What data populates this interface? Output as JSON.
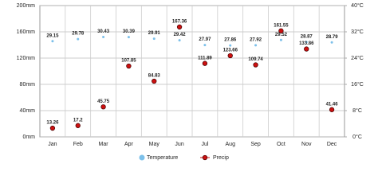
{
  "chart_data": {
    "type": "line",
    "categories": [
      "Jan",
      "Feb",
      "Mar",
      "Apr",
      "May",
      "Jun",
      "Jul",
      "Aug",
      "Sep",
      "Oct",
      "Nov",
      "Dec"
    ],
    "series": [
      {
        "name": "Temperature",
        "color": "#7cc0ea",
        "axis": "y2",
        "values": [
          29.15,
          29.78,
          30.43,
          30.39,
          29.91,
          29.42,
          27.97,
          27.86,
          27.92,
          29.52,
          28.87,
          28.79
        ]
      },
      {
        "name": "Precip",
        "color": "#cc1010",
        "values": [
          13.26,
          17.2,
          45.75,
          107.85,
          84.83,
          167.36,
          111.89,
          123.66,
          109.74,
          161.55,
          133.86,
          41.46
        ]
      }
    ],
    "ylim": [
      0,
      200
    ],
    "yticks": [
      {
        "value": 0,
        "label": "0mm"
      },
      {
        "value": 40,
        "label": "40mm"
      },
      {
        "value": 80,
        "label": "80mm"
      },
      {
        "value": 120,
        "label": "120mm"
      },
      {
        "value": 160,
        "label": "160mm"
      },
      {
        "value": 200,
        "label": "200mm"
      }
    ],
    "y2lim": [
      0,
      40
    ],
    "y2ticks": [
      {
        "value": 0,
        "label": "0°C"
      },
      {
        "value": 8,
        "label": "8°C"
      },
      {
        "value": 16,
        "label": "16°C"
      },
      {
        "value": 24,
        "label": "24°C"
      },
      {
        "value": 32,
        "label": "32°C"
      },
      {
        "value": 40,
        "label": "40°C"
      }
    ],
    "grid": true
  }
}
